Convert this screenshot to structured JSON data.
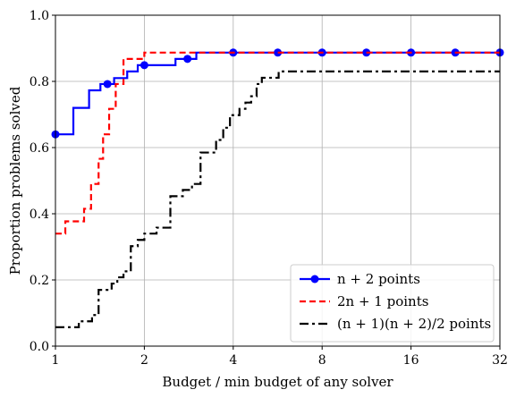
{
  "chart_data": {
    "type": "line",
    "xlabel": "Budget / min budget of any solver",
    "ylabel": "Proportion problems solved",
    "xscale": "log2",
    "xlim": [
      1,
      32
    ],
    "ylim": [
      0.0,
      1.0
    ],
    "grid": true,
    "legend_position": "lower-right",
    "xticks": [
      1,
      2,
      4,
      8,
      16,
      32
    ],
    "xtick_labels": [
      "1",
      "2",
      "4",
      "8",
      "16",
      "32"
    ],
    "yticks": [
      0.0,
      0.2,
      0.4,
      0.6,
      0.8,
      1.0
    ],
    "ytick_labels": [
      "0.0",
      "0.2",
      "0.4",
      "0.6",
      "0.8",
      "1.0"
    ],
    "series": [
      {
        "name": "n + 2 points",
        "color": "#0000ff",
        "style": "solid",
        "marker": "circle",
        "x": [
          1.0,
          1.05,
          1.15,
          1.3,
          1.35,
          1.42,
          1.5,
          1.58,
          1.65,
          1.75,
          1.82,
          1.9,
          2.0,
          2.1,
          2.35,
          2.55,
          2.8,
          3.0,
          3.2,
          32
        ],
        "y": [
          0.64,
          0.64,
          0.72,
          0.773,
          0.773,
          0.792,
          0.792,
          0.81,
          0.81,
          0.83,
          0.83,
          0.849,
          0.849,
          0.849,
          0.849,
          0.868,
          0.868,
          0.887,
          0.887,
          0.887
        ],
        "marker_x": [
          1.0,
          1.5,
          2.0,
          2.8,
          4,
          5.66,
          8,
          11.3,
          16,
          22.6,
          32
        ],
        "marker_y": [
          0.64,
          0.792,
          0.849,
          0.868,
          0.887,
          0.887,
          0.887,
          0.887,
          0.887,
          0.887,
          0.887
        ]
      },
      {
        "name": "2n + 1 points",
        "color": "#ff0000",
        "style": "dashed",
        "x": [
          1.0,
          1.04,
          1.08,
          1.15,
          1.25,
          1.32,
          1.4,
          1.45,
          1.52,
          1.6,
          1.7,
          1.85,
          1.95,
          2.0,
          32
        ],
        "y": [
          0.34,
          0.34,
          0.377,
          0.377,
          0.415,
          0.49,
          0.566,
          0.64,
          0.717,
          0.792,
          0.868,
          0.868,
          0.868,
          0.887,
          0.887
        ]
      },
      {
        "name": "(n + 1)(n + 2)/2 points",
        "color": "#000000",
        "style": "dashdot",
        "x": [
          1.0,
          1.15,
          1.2,
          1.28,
          1.33,
          1.4,
          1.45,
          1.55,
          1.62,
          1.7,
          1.8,
          1.9,
          2.0,
          2.2,
          2.45,
          2.7,
          2.9,
          3.1,
          3.3,
          3.5,
          3.7,
          3.9,
          4.0,
          4.2,
          4.4,
          4.6,
          4.8,
          5.0,
          5.2,
          5.5,
          5.7,
          32
        ],
        "y": [
          0.057,
          0.057,
          0.075,
          0.075,
          0.094,
          0.17,
          0.17,
          0.189,
          0.208,
          0.226,
          0.302,
          0.321,
          0.34,
          0.358,
          0.453,
          0.472,
          0.49,
          0.585,
          0.585,
          0.623,
          0.66,
          0.698,
          0.698,
          0.717,
          0.736,
          0.755,
          0.792,
          0.811,
          0.811,
          0.811,
          0.83,
          0.83
        ]
      }
    ]
  }
}
